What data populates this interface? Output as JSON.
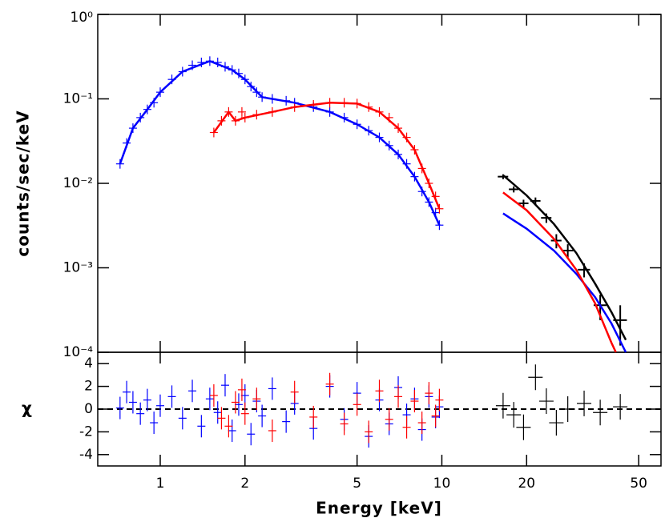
{
  "chart_data": [
    {
      "type": "spectrum",
      "ylabel": "counts/sec/keV",
      "xscale": "log",
      "yscale": "log",
      "xlim": [
        0.6,
        60
      ],
      "xticks": [
        1,
        2,
        5,
        10,
        20,
        50
      ],
      "ylim": [
        0.0001,
        1
      ],
      "yticks": [
        {
          "value": 1,
          "label": "10⁰"
        },
        {
          "value": 0.1,
          "label": "10⁻¹"
        },
        {
          "value": 0.01,
          "label": "10⁻²"
        },
        {
          "value": 0.001,
          "label": "10⁻³"
        },
        {
          "value": 0.0001,
          "label": "10⁻⁴"
        }
      ],
      "series": [
        {
          "color": "#0000ff",
          "style": "points",
          "x": [
            0.72,
            0.76,
            0.8,
            0.85,
            0.9,
            0.95,
            1.0,
            1.1,
            1.2,
            1.3,
            1.4,
            1.5,
            1.6,
            1.7,
            1.8,
            1.9,
            2.0,
            2.1,
            2.2,
            2.3,
            2.5,
            2.8,
            3.0,
            3.5,
            4.0,
            4.5,
            5.0,
            5.5,
            6.0,
            6.5,
            7.0,
            7.5,
            8.0,
            8.5,
            9.0,
            9.5,
            9.8
          ],
          "values": [
            0.017,
            0.03,
            0.045,
            0.06,
            0.075,
            0.09,
            0.12,
            0.17,
            0.21,
            0.25,
            0.27,
            0.28,
            0.27,
            0.24,
            0.22,
            0.2,
            0.17,
            0.14,
            0.12,
            0.105,
            0.1,
            0.095,
            0.09,
            0.08,
            0.07,
            0.06,
            0.05,
            0.042,
            0.035,
            0.028,
            0.022,
            0.017,
            0.012,
            0.008,
            0.006,
            0.0045,
            0.0032
          ]
        },
        {
          "color": "#ff0000",
          "style": "points",
          "x": [
            1.55,
            1.65,
            1.75,
            1.85,
            1.95,
            2.0,
            2.2,
            2.5,
            3.0,
            3.5,
            4.0,
            4.5,
            5.0,
            5.5,
            6.0,
            6.5,
            7.0,
            7.5,
            8.0,
            8.5,
            9.0,
            9.5,
            9.8
          ],
          "values": [
            0.04,
            0.055,
            0.07,
            0.055,
            0.07,
            0.06,
            0.065,
            0.07,
            0.08,
            0.085,
            0.09,
            0.09,
            0.088,
            0.08,
            0.07,
            0.06,
            0.045,
            0.035,
            0.025,
            0.015,
            0.01,
            0.007,
            0.005
          ]
        },
        {
          "color": "#000000",
          "style": "errorbars",
          "x": [
            16.5,
            18,
            19.5,
            21.5,
            23.5,
            25.5,
            28,
            32,
            36.5,
            43
          ],
          "xerr": [
            0.7,
            0.7,
            0.8,
            0.9,
            1,
            1.1,
            1.3,
            1.6,
            1.9,
            2.4
          ],
          "values": [
            0.012,
            0.0085,
            0.0058,
            0.0062,
            0.0039,
            0.0021,
            0.0016,
            0.00095,
            0.00036,
            0.00024
          ],
          "yerr": [
            0.0008,
            0.0007,
            0.0006,
            0.0006,
            0.0005,
            0.0004,
            0.0003,
            0.00018,
            0.00012,
            0.00012
          ]
        },
        {
          "color": "#0000ff",
          "style": "line",
          "x": [
            0.72,
            0.8,
            0.9,
            1.0,
            1.2,
            1.5,
            1.8,
            2.0,
            2.3,
            3.0,
            4.0,
            5.0,
            6.0,
            7.0,
            8.0,
            9.0,
            9.8
          ],
          "values": [
            0.017,
            0.045,
            0.075,
            0.12,
            0.21,
            0.28,
            0.22,
            0.17,
            0.105,
            0.09,
            0.07,
            0.05,
            0.035,
            0.022,
            0.012,
            0.006,
            0.0032
          ]
        },
        {
          "color": "#ff0000",
          "style": "line",
          "x": [
            1.55,
            1.75,
            1.85,
            2.0,
            2.5,
            3.0,
            4.0,
            5.0,
            6.0,
            7.0,
            8.0,
            9.0,
            9.8
          ],
          "values": [
            0.04,
            0.07,
            0.055,
            0.06,
            0.07,
            0.08,
            0.09,
            0.088,
            0.07,
            0.045,
            0.025,
            0.01,
            0.005
          ]
        },
        {
          "color": "#0000ff",
          "style": "line",
          "x": [
            16.5,
            20,
            25,
            30,
            35,
            40,
            45
          ],
          "values": [
            0.0044,
            0.0029,
            0.0016,
            0.00085,
            0.00045,
            0.00022,
            0.0001
          ]
        },
        {
          "color": "#ff0000",
          "style": "line",
          "x": [
            16.5,
            20,
            25,
            30,
            35,
            40,
            41.5
          ],
          "values": [
            0.0078,
            0.0048,
            0.0022,
            0.00095,
            0.00038,
            0.00013,
            0.0001
          ]
        },
        {
          "color": "#000000",
          "style": "line",
          "x": [
            16.5,
            20,
            25,
            30,
            35,
            40,
            45
          ],
          "values": [
            0.0125,
            0.0072,
            0.0033,
            0.0015,
            0.00065,
            0.0003,
            0.00014
          ]
        }
      ]
    },
    {
      "type": "residuals",
      "ylabel": "χ",
      "xlabel": "Energy [keV]",
      "xscale": "log",
      "xlim": [
        0.6,
        60
      ],
      "xticks": [
        1,
        2,
        5,
        10,
        20,
        50
      ],
      "ylim": [
        -5,
        5
      ],
      "yticks": [
        -4,
        -2,
        0,
        2,
        4
      ],
      "series": [
        {
          "color": "#0000ff",
          "x": [
            0.72,
            0.76,
            0.8,
            0.85,
            0.9,
            0.95,
            1.0,
            1.1,
            1.2,
            1.3,
            1.4,
            1.5,
            1.6,
            1.7,
            1.8,
            1.9,
            2.0,
            2.1,
            2.2,
            2.3,
            2.5,
            2.8,
            3.0,
            3.5,
            4.0,
            4.5,
            5.0,
            5.5,
            6.0,
            6.5,
            7.0,
            7.5,
            8.0,
            8.5,
            9.0,
            9.5,
            9.8
          ],
          "values": [
            0.1,
            1.5,
            0.6,
            -0.4,
            0.8,
            -1.2,
            0.3,
            1.1,
            -0.8,
            1.6,
            -1.5,
            0.9,
            -0.3,
            2.1,
            -1.9,
            0.4,
            1.2,
            -2.2,
            0.7,
            -0.6,
            1.8,
            -1.1,
            0.5,
            -1.7,
            2.0,
            -0.9,
            1.4,
            -2.4,
            0.8,
            -1.3,
            1.9,
            -0.5,
            0.9,
            -1.8,
            1.1,
            -0.7,
            0.2
          ]
        },
        {
          "color": "#ff0000",
          "x": [
            1.55,
            1.65,
            1.75,
            1.85,
            1.95,
            2.0,
            2.2,
            2.5,
            3.0,
            3.5,
            4.0,
            4.5,
            5.0,
            5.5,
            6.0,
            6.5,
            7.0,
            7.5,
            8.0,
            8.5,
            9.0,
            9.5,
            9.8
          ],
          "values": [
            1.2,
            -0.8,
            -1.5,
            0.6,
            1.7,
            -0.4,
            0.9,
            -1.9,
            1.5,
            -0.7,
            2.2,
            -1.3,
            0.4,
            -2.0,
            1.6,
            -0.9,
            1.1,
            -1.6,
            0.7,
            -1.2,
            1.4,
            -0.6,
            0.8
          ]
        },
        {
          "color": "#000000",
          "x": [
            16.5,
            18,
            19.5,
            21.5,
            23.5,
            25.5,
            28,
            32,
            36.5,
            43
          ],
          "values": [
            0.3,
            -0.5,
            -1.6,
            2.8,
            0.7,
            -1.2,
            0,
            0.5,
            -0.3,
            0.2
          ]
        }
      ]
    }
  ]
}
